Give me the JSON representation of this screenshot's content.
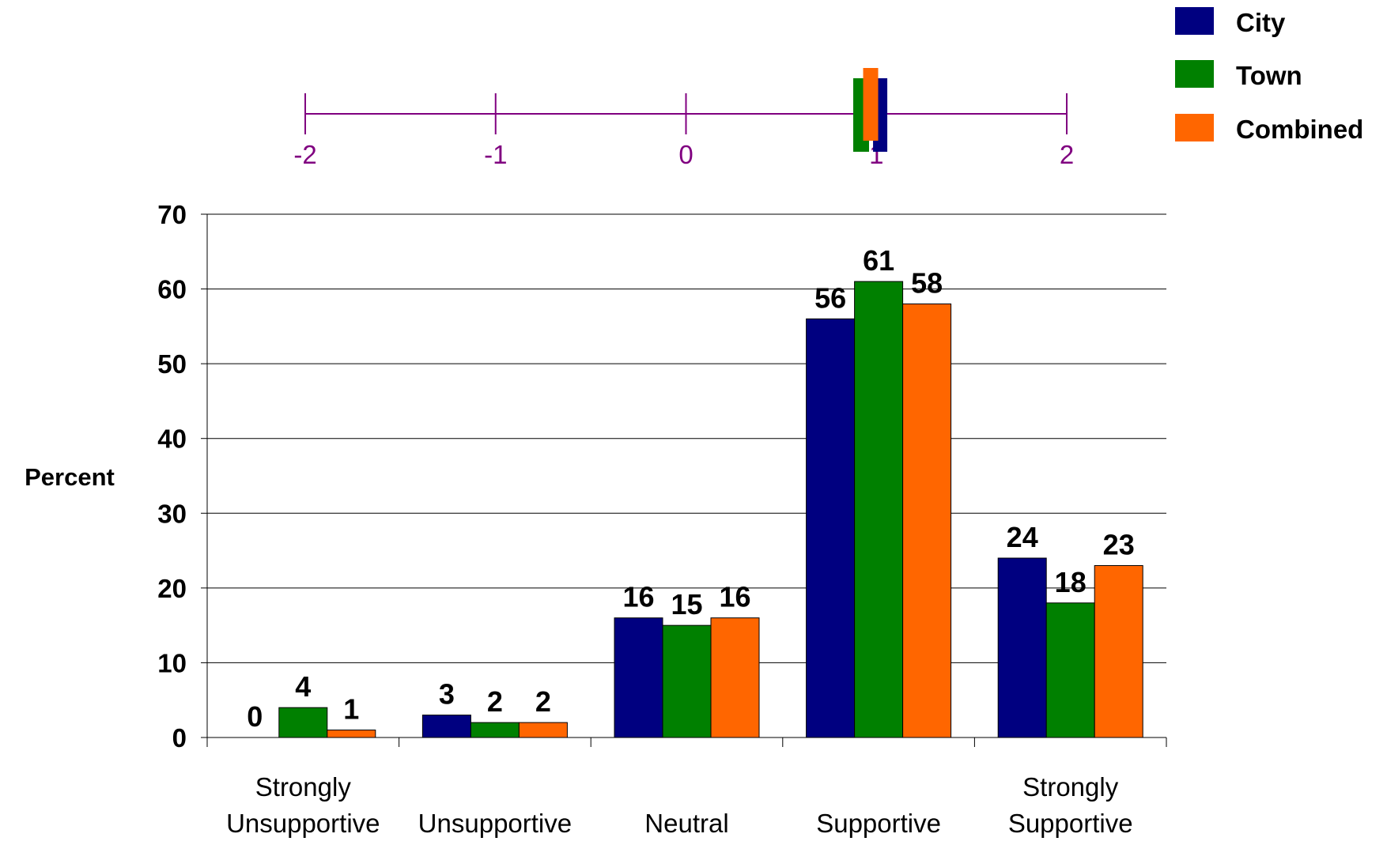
{
  "chart_data": {
    "type": "bar",
    "ylabel": "Percent",
    "ylim": [
      0,
      70
    ],
    "yticks": [
      0,
      10,
      20,
      30,
      40,
      50,
      60,
      70
    ],
    "grid": true,
    "legend": "top-right",
    "categories": [
      [
        "Strongly",
        "Unsupportive"
      ],
      [
        "Unsupportive"
      ],
      [
        "Neutral"
      ],
      [
        "Supportive"
      ],
      [
        "Strongly",
        "Supportive"
      ]
    ],
    "series": [
      {
        "name": "City",
        "color": "#000080",
        "values": [
          0,
          3,
          16,
          56,
          24
        ]
      },
      {
        "name": "Town",
        "color": "#008000",
        "values": [
          4,
          2,
          15,
          61,
          18
        ]
      },
      {
        "name": "Combined",
        "color": "#ff6600",
        "values": [
          1,
          2,
          16,
          58,
          23
        ]
      }
    ],
    "mean_scale": {
      "range": [
        -2,
        2
      ],
      "ticks": [
        -2,
        -1,
        0,
        1,
        2
      ],
      "color": "#800080",
      "markers": [
        {
          "series": "City",
          "value": 1.02
        },
        {
          "series": "Town",
          "value": 0.92
        },
        {
          "series": "Combined",
          "value": 0.97
        }
      ]
    }
  }
}
